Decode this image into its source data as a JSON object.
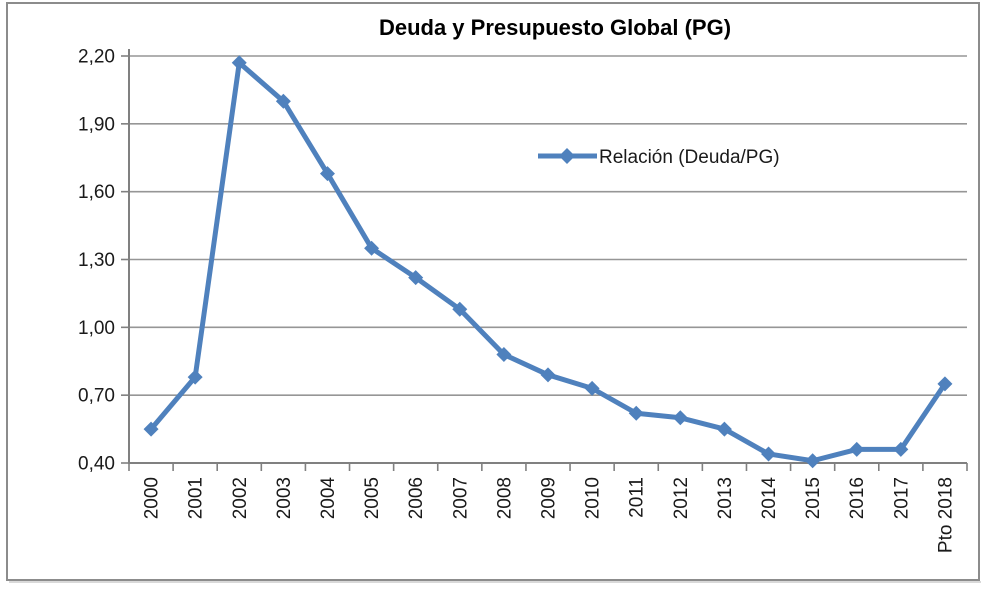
{
  "chart_data": {
    "type": "line",
    "title": "Deuda y Presupuesto Global (PG)",
    "legend_label": "Relación (Deuda/PG)",
    "legend_position": "inside-right-upper",
    "categories": [
      "2000",
      "2001",
      "2002",
      "2003",
      "2004",
      "2005",
      "2006",
      "2007",
      "2008",
      "2009",
      "2010",
      "2011",
      "2012",
      "2013",
      "2014",
      "2015",
      "2016",
      "2017",
      "Pto 2018"
    ],
    "series": [
      {
        "name": "Relación (Deuda/PG)",
        "values": [
          0.55,
          0.78,
          2.17,
          2.0,
          1.68,
          1.35,
          1.22,
          1.08,
          0.88,
          0.79,
          0.73,
          0.62,
          0.6,
          0.55,
          0.44,
          0.41,
          0.46,
          0.46,
          0.75
        ]
      }
    ],
    "ylim": [
      0.4,
      2.2
    ],
    "y_tick_step": 0.3,
    "y_tick_labels": [
      "0,40",
      "0,70",
      "1,00",
      "1,30",
      "1,60",
      "1,90",
      "2,20"
    ],
    "xlabel": "",
    "ylabel": "",
    "grid": true,
    "x_labels_rotated_degrees": 90,
    "decimal_separator": ",",
    "colors": {
      "series": "#4F81BD",
      "gridline": "#969696",
      "axis": "#808080",
      "text": "#1a1a1a",
      "background": "#ffffff",
      "frame_border": "#8c8c8c"
    }
  }
}
